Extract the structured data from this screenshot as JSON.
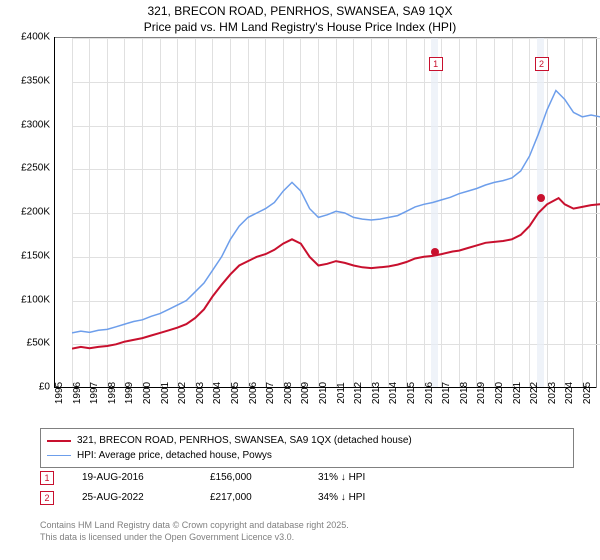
{
  "title": {
    "line1": "321, BRECON ROAD, PENRHOS, SWANSEA, SA9 1QX",
    "line2": "Price paid vs. HM Land Registry's House Price Index (HPI)"
  },
  "chart": {
    "type": "line",
    "background_color": "#ffffff",
    "grid_color": "#e0e0e0",
    "axis_color": "#000000",
    "ylim": [
      0,
      400000
    ],
    "ytick_step": 50000,
    "yticks": [
      "£0",
      "£50K",
      "£100K",
      "£150K",
      "£200K",
      "£250K",
      "£300K",
      "£350K",
      "£400K"
    ],
    "xlim": [
      1995,
      2025.8
    ],
    "xticks": [
      1995,
      1996,
      1997,
      1998,
      1999,
      2000,
      2001,
      2002,
      2003,
      2004,
      2005,
      2006,
      2007,
      2008,
      2009,
      2010,
      2011,
      2012,
      2013,
      2014,
      2015,
      2016,
      2017,
      2018,
      2019,
      2020,
      2021,
      2022,
      2023,
      2024,
      2025
    ],
    "series": {
      "price_paid": {
        "label": "321, BRECON ROAD, PENRHOS, SWANSEA, SA9 1QX (detached house)",
        "color": "#c8102e",
        "width": 2,
        "data": [
          [
            1995,
            45000
          ],
          [
            1995.5,
            47000
          ],
          [
            1996,
            45500
          ],
          [
            1996.5,
            47000
          ],
          [
            1997,
            48000
          ],
          [
            1997.5,
            50000
          ],
          [
            1998,
            53000
          ],
          [
            1998.5,
            55000
          ],
          [
            1999,
            57000
          ],
          [
            1999.5,
            60000
          ],
          [
            2000,
            63000
          ],
          [
            2000.5,
            66000
          ],
          [
            2001,
            69000
          ],
          [
            2001.5,
            73000
          ],
          [
            2002,
            80000
          ],
          [
            2002.5,
            90000
          ],
          [
            2003,
            105000
          ],
          [
            2003.5,
            118000
          ],
          [
            2004,
            130000
          ],
          [
            2004.5,
            140000
          ],
          [
            2005,
            145000
          ],
          [
            2005.5,
            150000
          ],
          [
            2006,
            153000
          ],
          [
            2006.5,
            158000
          ],
          [
            2007,
            165000
          ],
          [
            2007.5,
            170000
          ],
          [
            2008,
            165000
          ],
          [
            2008.5,
            150000
          ],
          [
            2009,
            140000
          ],
          [
            2009.5,
            142000
          ],
          [
            2010,
            145000
          ],
          [
            2010.5,
            143000
          ],
          [
            2011,
            140000
          ],
          [
            2011.5,
            138000
          ],
          [
            2012,
            137000
          ],
          [
            2012.5,
            138000
          ],
          [
            2013,
            139000
          ],
          [
            2013.5,
            141000
          ],
          [
            2014,
            144000
          ],
          [
            2014.5,
            148000
          ],
          [
            2015,
            150000
          ],
          [
            2015.5,
            151000
          ],
          [
            2016,
            153000
          ],
          [
            2016.63,
            156000
          ],
          [
            2017,
            157000
          ],
          [
            2017.5,
            160000
          ],
          [
            2018,
            163000
          ],
          [
            2018.5,
            166000
          ],
          [
            2019,
            167000
          ],
          [
            2019.5,
            168000
          ],
          [
            2020,
            170000
          ],
          [
            2020.5,
            175000
          ],
          [
            2021,
            185000
          ],
          [
            2021.5,
            200000
          ],
          [
            2022,
            210000
          ],
          [
            2022.65,
            217000
          ],
          [
            2023,
            210000
          ],
          [
            2023.5,
            205000
          ],
          [
            2024,
            207000
          ],
          [
            2024.5,
            209000
          ],
          [
            2025,
            210000
          ],
          [
            2025.5,
            211000
          ]
        ]
      },
      "hpi": {
        "label": "HPI: Average price, detached house, Powys",
        "color": "#6d9eeb",
        "width": 1.5,
        "data": [
          [
            1995,
            63000
          ],
          [
            1995.5,
            65000
          ],
          [
            1996,
            63500
          ],
          [
            1996.5,
            66000
          ],
          [
            1997,
            67000
          ],
          [
            1997.5,
            70000
          ],
          [
            1998,
            73000
          ],
          [
            1998.5,
            76000
          ],
          [
            1999,
            78000
          ],
          [
            1999.5,
            82000
          ],
          [
            2000,
            85000
          ],
          [
            2000.5,
            90000
          ],
          [
            2001,
            95000
          ],
          [
            2001.5,
            100000
          ],
          [
            2002,
            110000
          ],
          [
            2002.5,
            120000
          ],
          [
            2003,
            135000
          ],
          [
            2003.5,
            150000
          ],
          [
            2004,
            170000
          ],
          [
            2004.5,
            185000
          ],
          [
            2005,
            195000
          ],
          [
            2005.5,
            200000
          ],
          [
            2006,
            205000
          ],
          [
            2006.5,
            212000
          ],
          [
            2007,
            225000
          ],
          [
            2007.5,
            235000
          ],
          [
            2008,
            225000
          ],
          [
            2008.5,
            205000
          ],
          [
            2009,
            195000
          ],
          [
            2009.5,
            198000
          ],
          [
            2010,
            202000
          ],
          [
            2010.5,
            200000
          ],
          [
            2011,
            195000
          ],
          [
            2011.5,
            193000
          ],
          [
            2012,
            192000
          ],
          [
            2012.5,
            193000
          ],
          [
            2013,
            195000
          ],
          [
            2013.5,
            197000
          ],
          [
            2014,
            202000
          ],
          [
            2014.5,
            207000
          ],
          [
            2015,
            210000
          ],
          [
            2015.5,
            212000
          ],
          [
            2016,
            215000
          ],
          [
            2016.5,
            218000
          ],
          [
            2017,
            222000
          ],
          [
            2017.5,
            225000
          ],
          [
            2018,
            228000
          ],
          [
            2018.5,
            232000
          ],
          [
            2019,
            235000
          ],
          [
            2019.5,
            237000
          ],
          [
            2020,
            240000
          ],
          [
            2020.5,
            248000
          ],
          [
            2021,
            265000
          ],
          [
            2021.5,
            290000
          ],
          [
            2022,
            318000
          ],
          [
            2022.5,
            340000
          ],
          [
            2023,
            330000
          ],
          [
            2023.5,
            315000
          ],
          [
            2024,
            310000
          ],
          [
            2024.5,
            312000
          ],
          [
            2025,
            310000
          ],
          [
            2025.5,
            308000
          ]
        ]
      }
    },
    "sale_bands": [
      {
        "x": 2016.63,
        "width_years": 0.4,
        "color": "#e8eef7"
      },
      {
        "x": 2022.65,
        "width_years": 0.4,
        "color": "#e8eef7"
      }
    ],
    "sale_markers": [
      {
        "n": "1",
        "x": 2016.63,
        "y": 156000,
        "box_y": 378000,
        "border": "#c8102e",
        "dot_fill": "#c8102e"
      },
      {
        "n": "2",
        "x": 2022.65,
        "y": 217000,
        "box_y": 378000,
        "border": "#c8102e",
        "dot_fill": "#c8102e"
      }
    ]
  },
  "legend": {
    "rows": [
      {
        "color": "#c8102e",
        "width": 2,
        "label_path": "chart.series.price_paid.label"
      },
      {
        "color": "#6d9eeb",
        "width": 1.5,
        "label_path": "chart.series.hpi.label"
      }
    ]
  },
  "sales": [
    {
      "n": "1",
      "border": "#c8102e",
      "date": "19-AUG-2016",
      "price": "£156,000",
      "delta": "31% ↓ HPI"
    },
    {
      "n": "2",
      "border": "#c8102e",
      "date": "25-AUG-2022",
      "price": "£217,000",
      "delta": "34% ↓ HPI"
    }
  ],
  "footer": {
    "line1": "Contains HM Land Registry data © Crown copyright and database right 2025.",
    "line2": "This data is licensed under the Open Government Licence v3.0."
  }
}
